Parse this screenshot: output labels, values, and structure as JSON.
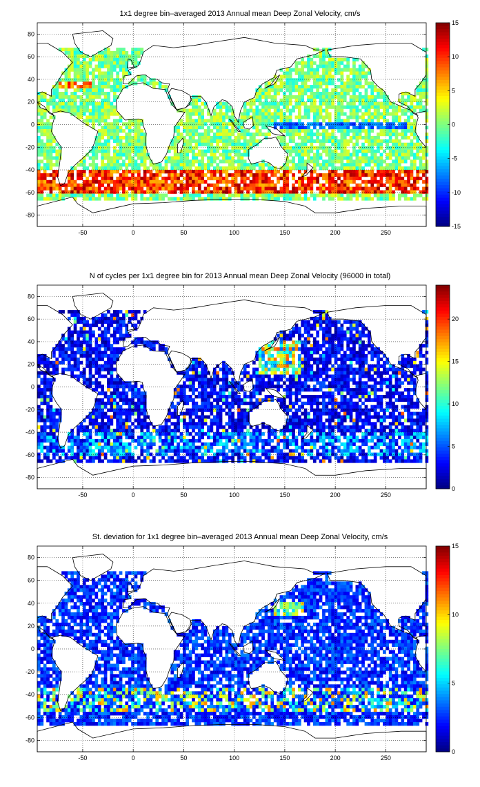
{
  "chart_data": [
    {
      "type": "heatmap",
      "title": "1x1 degree bin–averaged 2013 Annual mean Deep Zonal Velocity, cm/s",
      "xlim": [
        -95,
        290
      ],
      "ylim": [
        -90,
        90
      ],
      "x_ticks": [
        -50,
        0,
        50,
        100,
        150,
        200,
        250
      ],
      "y_ticks": [
        80,
        60,
        40,
        20,
        0,
        -20,
        -40,
        -60,
        -80
      ],
      "grid": true,
      "colormap": "jet",
      "colorbar": {
        "min": -15,
        "max": 15,
        "ticks": [
          15,
          10,
          5,
          0,
          -5,
          -10,
          -15
        ]
      },
      "background": "land outlines (coastlines)"
    },
    {
      "type": "heatmap",
      "title": "N of cycles per 1x1 degree bin for 2013 Annual mean Deep Zonal Velocity (96000 in total)",
      "xlim": [
        -95,
        290
      ],
      "ylim": [
        -90,
        90
      ],
      "x_ticks": [
        -50,
        0,
        50,
        100,
        150,
        200,
        250
      ],
      "y_ticks": [
        80,
        60,
        40,
        20,
        0,
        -20,
        -40,
        -60,
        -80
      ],
      "grid": true,
      "colormap": "jet",
      "colorbar": {
        "min": 0,
        "max": 24,
        "ticks": [
          20,
          15,
          10,
          5,
          0
        ]
      },
      "background": "land outlines (coastlines)"
    },
    {
      "type": "heatmap",
      "title": "St. deviation for 1x1 degree bin–averaged 2013 Annual mean Deep Zonal Velocity, cm/s",
      "xlim": [
        -95,
        290
      ],
      "ylim": [
        -90,
        90
      ],
      "x_ticks": [
        -50,
        0,
        50,
        100,
        150,
        200,
        250
      ],
      "y_ticks": [
        80,
        60,
        40,
        20,
        0,
        -20,
        -40,
        -60,
        -80
      ],
      "grid": true,
      "colormap": "jet",
      "colorbar": {
        "min": 0,
        "max": 15,
        "ticks": [
          15,
          10,
          5,
          0
        ]
      },
      "background": "land outlines (coastlines)"
    }
  ]
}
